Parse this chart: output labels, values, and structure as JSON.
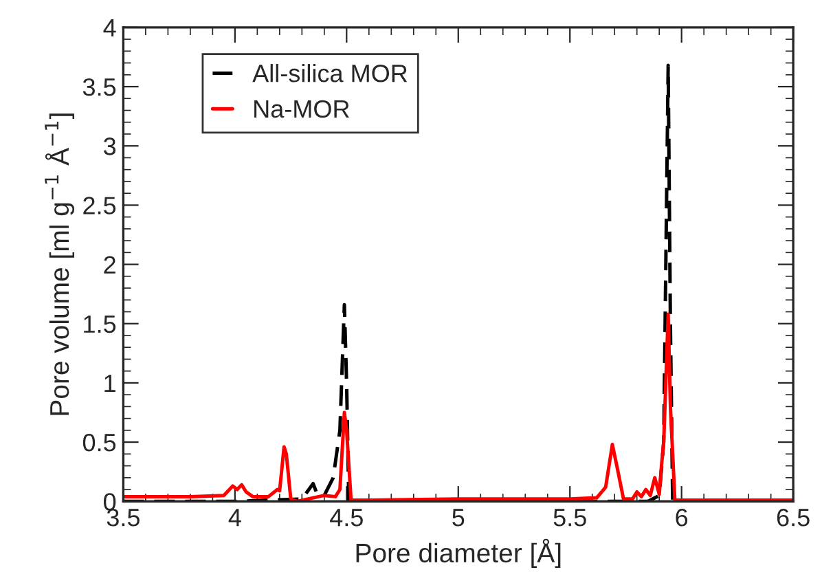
{
  "chart_data": {
    "type": "line",
    "xlabel": "Pore diameter [Å]",
    "ylabel": "Pore volume [ml g$^{−1}$ Å$^{−1}$]",
    "xlim": [
      3.5,
      6.5
    ],
    "ylim": [
      0,
      4
    ],
    "xticks": [
      3.5,
      4,
      4.5,
      5,
      5.5,
      6,
      6.5
    ],
    "yticks": [
      0,
      0.5,
      1,
      1.5,
      2,
      2.5,
      3,
      3.5,
      4
    ],
    "legend": "top left",
    "grid": false,
    "series": [
      {
        "name": "All-silica MOR",
        "color": "#000000",
        "line_style": "dashed",
        "x": [
          3.5,
          4.0,
          4.3,
          4.35,
          4.37,
          4.4,
          4.44,
          4.47,
          4.49,
          4.5,
          4.51,
          4.6,
          5.0,
          5.5,
          5.85,
          5.9,
          5.92,
          5.94,
          5.95,
          5.96,
          6.0,
          6.5
        ],
        "values": [
          0.0,
          0.0,
          0.02,
          0.15,
          0.05,
          0.05,
          0.2,
          0.6,
          1.66,
          1.0,
          0.0,
          0.0,
          0.0,
          0.0,
          0.0,
          0.05,
          0.5,
          3.68,
          1.5,
          0.0,
          0.0,
          0.0
        ]
      },
      {
        "name": "Na-MOR",
        "color": "#ff0000",
        "line_style": "solid",
        "x": [
          3.5,
          3.8,
          3.95,
          3.99,
          4.01,
          4.03,
          4.05,
          4.08,
          4.15,
          4.19,
          4.2,
          4.22,
          4.23,
          4.25,
          4.28,
          4.35,
          4.4,
          4.45,
          4.47,
          4.49,
          4.5,
          4.52,
          4.6,
          5.0,
          5.5,
          5.62,
          5.66,
          5.69,
          5.71,
          5.74,
          5.78,
          5.8,
          5.82,
          5.84,
          5.86,
          5.88,
          5.9,
          5.91,
          5.92,
          5.94,
          5.95,
          5.97,
          6.0,
          6.5
        ],
        "values": [
          0.04,
          0.04,
          0.05,
          0.13,
          0.1,
          0.14,
          0.08,
          0.04,
          0.04,
          0.1,
          0.09,
          0.46,
          0.4,
          0.02,
          0.0,
          0.03,
          0.05,
          0.04,
          0.1,
          0.75,
          0.6,
          0.01,
          0.01,
          0.02,
          0.02,
          0.03,
          0.12,
          0.48,
          0.3,
          0.02,
          0.02,
          0.08,
          0.04,
          0.1,
          0.05,
          0.2,
          0.06,
          0.3,
          0.5,
          1.58,
          0.8,
          0.01,
          0.01,
          0.01
        ]
      }
    ]
  }
}
